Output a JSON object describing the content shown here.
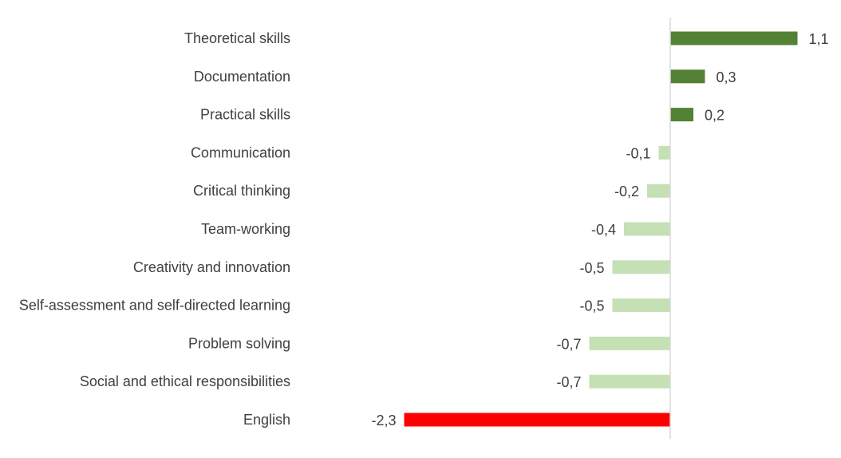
{
  "chart_data": {
    "type": "bar",
    "orientation": "horizontal",
    "categories": [
      "Theoretical skills",
      "Documentation",
      "Practical skills",
      "Communication",
      "Critical thinking",
      "Team-working",
      "Creativity and innovation",
      "Self-assessment and self-directed learning",
      "Problem solving",
      "Social and ethical responsibilities",
      "English"
    ],
    "values": [
      1.1,
      0.3,
      0.2,
      -0.1,
      -0.2,
      -0.4,
      -0.5,
      -0.5,
      -0.7,
      -0.7,
      -2.3
    ],
    "data_labels": [
      "1,1",
      "0,3",
      "0,2",
      "-0,1",
      "-0,2",
      "-0,4",
      "-0,5",
      "-0,5",
      "-0,7",
      "-0,7",
      "-2,3"
    ],
    "colors": [
      "#548235",
      "#548235",
      "#548235",
      "#c5e0b4",
      "#c5e0b4",
      "#c5e0b4",
      "#c5e0b4",
      "#c5e0b4",
      "#c5e0b4",
      "#c5e0b4",
      "#ff0000"
    ],
    "xlim": [
      -2.3,
      1.1
    ],
    "grid": false,
    "legend": "none",
    "title": "",
    "xlabel": "",
    "ylabel": ""
  }
}
